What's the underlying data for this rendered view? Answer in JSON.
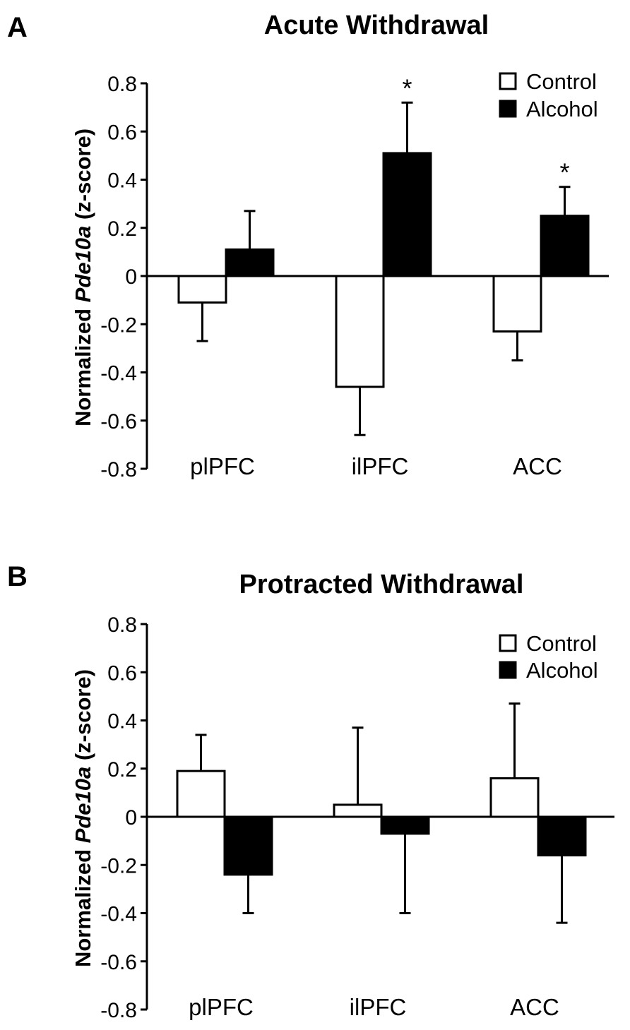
{
  "chart_data": [
    {
      "panel": "A",
      "type": "bar",
      "title": "Acute Withdrawal",
      "ylabel_prefix": "Normalized ",
      "ylabel_italic": "Pde10a",
      "ylabel_suffix": " (z-score)",
      "xlabel": "",
      "categories": [
        "plPFC",
        "ilPFC",
        "ACC"
      ],
      "ylim": [
        -0.8,
        0.8
      ],
      "yticks": [
        "0.8",
        "0.6",
        "0.4",
        "0.2",
        "0",
        "-0.2",
        "-0.4",
        "-0.6",
        "-0.8"
      ],
      "ytick_values": [
        0.8,
        0.6,
        0.4,
        0.2,
        0,
        -0.2,
        -0.4,
        -0.6,
        -0.8
      ],
      "legend_position": "top-right",
      "series": [
        {
          "name": "Control",
          "fill": "#ffffff",
          "values": [
            -0.11,
            -0.46,
            -0.23
          ],
          "errors": [
            0.16,
            0.2,
            0.12
          ]
        },
        {
          "name": "Alcohol",
          "fill": "#000000",
          "values": [
            0.11,
            0.51,
            0.25
          ],
          "errors": [
            0.16,
            0.21,
            0.12
          ]
        }
      ],
      "annotations": [
        {
          "text": "*",
          "category": "ilPFC",
          "series": "Alcohol"
        },
        {
          "text": "*",
          "category": "ACC",
          "series": "Alcohol"
        }
      ]
    },
    {
      "panel": "B",
      "type": "bar",
      "title": "Protracted Withdrawal",
      "ylabel_prefix": "Normalized ",
      "ylabel_italic": "Pde10a",
      "ylabel_suffix": " (z-score)",
      "xlabel": "",
      "categories": [
        "plPFC",
        "ilPFC",
        "ACC"
      ],
      "ylim": [
        -0.8,
        0.8
      ],
      "yticks": [
        "0.8",
        "0.6",
        "0.4",
        "0.2",
        "0",
        "-0.2",
        "-0.4",
        "-0.6",
        "-0.8"
      ],
      "ytick_values": [
        0.8,
        0.6,
        0.4,
        0.2,
        0,
        -0.2,
        -0.4,
        -0.6,
        -0.8
      ],
      "legend_position": "top-right",
      "series": [
        {
          "name": "Control",
          "fill": "#ffffff",
          "values": [
            0.19,
            0.05,
            0.16
          ],
          "errors": [
            0.15,
            0.32,
            0.31
          ]
        },
        {
          "name": "Alcohol",
          "fill": "#000000",
          "values": [
            -0.24,
            -0.07,
            -0.16
          ],
          "errors": [
            0.16,
            0.33,
            0.28
          ]
        }
      ],
      "annotations": []
    }
  ]
}
